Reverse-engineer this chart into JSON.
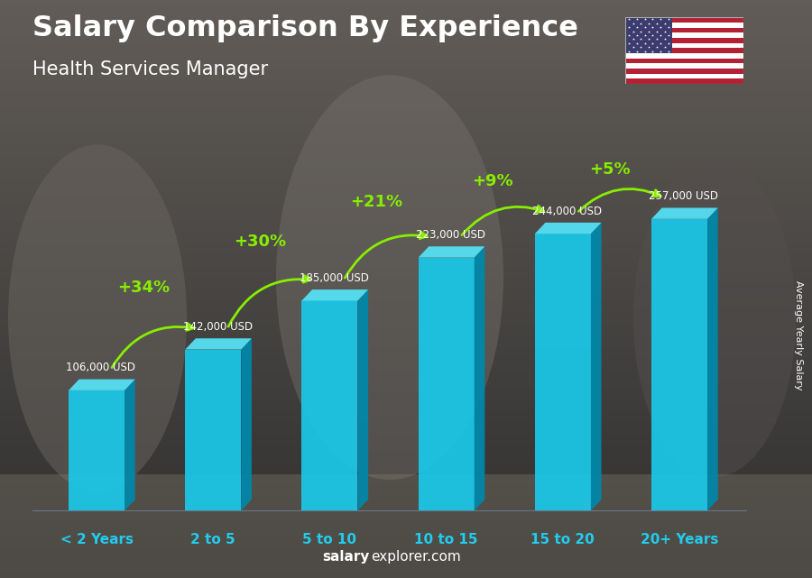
{
  "title": "Salary Comparison By Experience",
  "subtitle": "Health Services Manager",
  "categories": [
    "< 2 Years",
    "2 to 5",
    "5 to 10",
    "10 to 15",
    "15 to 20",
    "20+ Years"
  ],
  "values": [
    106000,
    142000,
    185000,
    223000,
    244000,
    257000
  ],
  "labels": [
    "106,000 USD",
    "142,000 USD",
    "185,000 USD",
    "223,000 USD",
    "244,000 USD",
    "257,000 USD"
  ],
  "pct_changes": [
    "+34%",
    "+30%",
    "+21%",
    "+9%",
    "+5%"
  ],
  "front_color": "#1ac8e8",
  "side_color": "#0088aa",
  "top_color": "#55ddf0",
  "bg_color": "#4a4a4a",
  "title_color": "#ffffff",
  "subtitle_color": "#ffffff",
  "label_color": "#ffffff",
  "pct_color": "#88ee00",
  "cat_color": "#22ccee",
  "footer_bold": "salary",
  "footer_normal": "explorer.com",
  "ylabel_text": "Average Yearly Salary",
  "max_val": 257000
}
